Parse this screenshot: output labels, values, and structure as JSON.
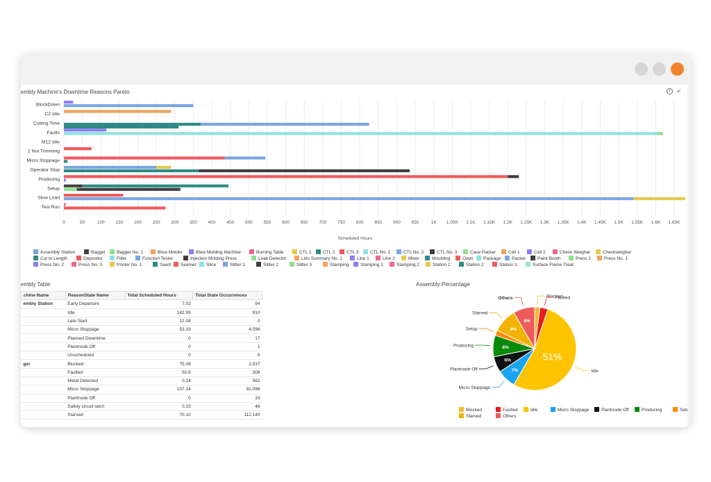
{
  "window": {
    "controls": [
      {
        "name": "minimize",
        "color": "#d6d6d6"
      },
      {
        "name": "maximize",
        "color": "#d6d6d6"
      },
      {
        "name": "close",
        "color": "#f2842e"
      }
    ]
  },
  "pareto": {
    "title": "embly Machine's Downtime Reasons Pareto",
    "info_icon": "info-icon",
    "collapse_icon": "arrow-icon",
    "chart_data": {
      "type": "bar",
      "orientation": "horizontal",
      "title": "embly Machine's Downtime Reasons Pareto",
      "xlabel": "Scheduled Hours",
      "xlim": [
        0,
        1650
      ],
      "x_ticks": [
        "0",
        "50",
        "100",
        "150",
        "200",
        "250",
        "300",
        "350",
        "400",
        "450",
        "500",
        "550",
        "600",
        "650",
        "700",
        "750",
        "800",
        "850",
        "900",
        "950",
        "1K",
        "1.05K",
        "1.1K",
        "1.15K",
        "1.2K",
        "1.25K",
        "1.3K",
        "1.35K",
        "1.4K",
        "1.45K",
        "1.5K",
        "1.55K",
        "1.6K",
        "1.65K"
      ],
      "categories": [
        "BlockDown",
        "C2 Idle",
        "Cutting Time",
        "Faults",
        "M12 Idle",
        "2 Not Trimming",
        "Micro Stoppage",
        "Operator Stop",
        "Producing",
        "Setup",
        "Slow Load",
        "Test Run"
      ],
      "bars": [
        {
          "category": "BlockDown",
          "series": "Cell 2",
          "value": 25
        },
        {
          "category": "BlockDown",
          "series": "CTL No. 2",
          "value": 350
        },
        {
          "category": "C2 Idle",
          "series": "Blow Molder",
          "value": 290
        },
        {
          "category": "Cutting Time",
          "series": "CTL 2",
          "value": 370
        },
        {
          "category": "Cutting Time",
          "series": "CTL No. 2",
          "value": 455
        },
        {
          "category": "Cutting Time",
          "series": "CTL 2",
          "value": 310
        },
        {
          "category": "Faults",
          "series": "Blow Molding Machine",
          "value": 115
        },
        {
          "category": "Faults",
          "series": "CTL No. 1",
          "value": 1605
        },
        {
          "category": "Faults",
          "series": "Bagger No. 1",
          "value": 15
        },
        {
          "category": "2 Not Trimming",
          "series": "CTL 3",
          "value": 75
        },
        {
          "category": "Micro Stoppage",
          "series": "CTL 3",
          "value": 435
        },
        {
          "category": "Micro Stoppage",
          "series": "CTL No. 2",
          "value": 110
        },
        {
          "category": "Micro Stoppage",
          "series": "CTL 2",
          "value": 10
        },
        {
          "category": "Operator Stop",
          "series": "CTL No. 2",
          "value": 250
        },
        {
          "category": "Operator Stop",
          "series": "CTL 1",
          "value": 40
        },
        {
          "category": "Operator Stop",
          "series": "CTL 2",
          "value": 365
        },
        {
          "category": "Operator Stop",
          "series": "CTL No. 3",
          "value": 570
        },
        {
          "category": "Producing",
          "series": "CTL 3",
          "value": 1200
        },
        {
          "category": "Producing",
          "series": "CTL No. 3",
          "value": 30
        },
        {
          "category": "Producing",
          "series": "Cell 2",
          "value": 5
        },
        {
          "category": "Setup",
          "series": "Bagger",
          "value": 35
        },
        {
          "category": "Setup",
          "series": "CTL No. 3",
          "value": 15
        },
        {
          "category": "Setup",
          "series": "CTL 2",
          "value": 395
        },
        {
          "category": "Setup",
          "series": "Bagger No. 1",
          "value": 35
        },
        {
          "category": "Setup",
          "series": "Bagger",
          "value": 5
        },
        {
          "category": "Setup",
          "series": "CTL No. 3",
          "value": 275
        },
        {
          "category": "Slow Load",
          "series": "CTL 3",
          "value": 160
        },
        {
          "category": "Slow Load",
          "series": "CTL No. 2",
          "value": 1540
        },
        {
          "category": "Slow Load",
          "series": "CTL 1",
          "value": 140
        },
        {
          "category": "Test Run",
          "series": "Burning Table",
          "value": 5
        },
        {
          "category": "Test Run",
          "series": "CTL 3",
          "value": 275
        }
      ]
    },
    "legend": [
      {
        "label": "Assembly Station",
        "color": "#7aa6e0"
      },
      {
        "label": "Bagger",
        "color": "#444444"
      },
      {
        "label": "Bagger No. 1",
        "color": "#8ee08a"
      },
      {
        "label": "Blow Molder",
        "color": "#f2a35e"
      },
      {
        "label": "Blow Molding Machine",
        "color": "#8a7ef0"
      },
      {
        "label": "Burning Table",
        "color": "#f06792"
      },
      {
        "label": "CTL 1",
        "color": "#e6c84e"
      },
      {
        "label": "CTL 2",
        "color": "#2e8b84"
      },
      {
        "label": "CTL 3",
        "color": "#ef5a5e"
      },
      {
        "label": "CTL No. 1",
        "color": "#8fe3e0"
      },
      {
        "label": "CTL No. 2",
        "color": "#7aa6e0"
      },
      {
        "label": "CTL No. 3",
        "color": "#3d3d3d"
      },
      {
        "label": "Case Packer",
        "color": "#8ee08a"
      },
      {
        "label": "Cell 1",
        "color": "#f2a35e"
      },
      {
        "label": "Cell 2",
        "color": "#8a7ef0"
      },
      {
        "label": "Check Weigher",
        "color": "#f06792"
      },
      {
        "label": "Checkweigher",
        "color": "#e6c84e"
      },
      {
        "label": "Cut to Length",
        "color": "#2e8b84"
      },
      {
        "label": "Depositor",
        "color": "#ef5a5e"
      },
      {
        "label": "Filler",
        "color": "#8fe3e0"
      },
      {
        "label": "Function Tester",
        "color": "#7aa6e0"
      },
      {
        "label": "Injection Molding Press",
        "color": "#3d3d3d"
      },
      {
        "label": "Leak Detector",
        "color": "#8ee08a"
      },
      {
        "label": "Lids Summary No. 1",
        "color": "#f2a35e"
      },
      {
        "label": "Line 1",
        "color": "#8a7ef0"
      },
      {
        "label": "Line 2",
        "color": "#f06792"
      },
      {
        "label": "Mixer",
        "color": "#e6c84e"
      },
      {
        "label": "Moulding",
        "color": "#2e8b84"
      },
      {
        "label": "Oven",
        "color": "#ef5a5e"
      },
      {
        "label": "Package",
        "color": "#8fe3e0"
      },
      {
        "label": "Packer",
        "color": "#7aa6e0"
      },
      {
        "label": "Paint Booth",
        "color": "#3d3d3d"
      },
      {
        "label": "Press 2",
        "color": "#8ee08a"
      },
      {
        "label": "Press No. 1",
        "color": "#f2a35e"
      },
      {
        "label": "Press No. 2",
        "color": "#8a7ef0"
      },
      {
        "label": "Press No. 3",
        "color": "#f06792"
      },
      {
        "label": "Printer No. 1",
        "color": "#e6c84e"
      },
      {
        "label": "Saw3",
        "color": "#2e8b84"
      },
      {
        "label": "Seamer",
        "color": "#ef5a5e"
      },
      {
        "label": "Slice",
        "color": "#8fe3e0"
      },
      {
        "label": "Slitter 1",
        "color": "#7aa6e0"
      },
      {
        "label": "Slitter 2",
        "color": "#3d3d3d"
      },
      {
        "label": "Slitter 3",
        "color": "#8ee08a"
      },
      {
        "label": "Stamping",
        "color": "#f2a35e"
      },
      {
        "label": "Stamping 1",
        "color": "#8a7ef0"
      },
      {
        "label": "Stamping 2",
        "color": "#f06792"
      },
      {
        "label": "Station 1",
        "color": "#e6c84e"
      },
      {
        "label": "Station 2",
        "color": "#2e8b84"
      },
      {
        "label": "Station 3",
        "color": "#ef5a5e"
      },
      {
        "label": "Surface Flame Treat",
        "color": "#8fe3e0"
      }
    ]
  },
  "table": {
    "title": "embly Table",
    "headers": [
      "chine Name",
      "ReasonState Name",
      "Total Scheduled Hours",
      "Total State Occurrences"
    ],
    "rows": [
      {
        "machine": "embly Station",
        "reason": "Early Departure",
        "hours": "7.02",
        "occ": "94"
      },
      {
        "machine": "",
        "reason": "Idle",
        "hours": "142.99",
        "occ": "910"
      },
      {
        "machine": "",
        "reason": "Late Start",
        "hours": "12.08",
        "occ": "0"
      },
      {
        "machine": "",
        "reason": "Micro Stoppage",
        "hours": "53.33",
        "occ": "4,596"
      },
      {
        "machine": "",
        "reason": "Planned Downtime",
        "hours": "0",
        "occ": "17"
      },
      {
        "machine": "",
        "reason": "Plantnode Off",
        "hours": "0",
        "occ": "1"
      },
      {
        "machine": "",
        "reason": "Unscheduled",
        "hours": "0",
        "occ": "6"
      },
      {
        "machine": "ger",
        "reason": "Blocked",
        "hours": "75.08",
        "occ": "2,537"
      },
      {
        "machine": "",
        "reason": "Faulted",
        "hours": "92.8",
        "occ": "308"
      },
      {
        "machine": "",
        "reason": "Metal Detected",
        "hours": "0.14",
        "occ": "562"
      },
      {
        "machine": "",
        "reason": "Micro Stoppage",
        "hours": "107.14",
        "occ": "92,096"
      },
      {
        "machine": "",
        "reason": "Plantnode Off",
        "hours": "0",
        "occ": "33"
      },
      {
        "machine": "",
        "reason": "Safety circuit latch",
        "hours": "0.33",
        "occ": "48"
      },
      {
        "machine": "",
        "reason": "Starved",
        "hours": "70.10",
        "occ": "112,140"
      }
    ]
  },
  "pie": {
    "title": "Assembly Percentage",
    "chart_data": {
      "type": "pie",
      "title": "Assembly Percentage",
      "slices": [
        {
          "label": "Blocked",
          "value": 2,
          "color": "#f7b731"
        },
        {
          "label": "Faulted",
          "value": 3,
          "color": "#e81c1c"
        },
        {
          "label": "Idle",
          "value": 51,
          "color": "#ffc400"
        },
        {
          "label": "Micro Stoppage",
          "value": 7,
          "color": "#1aa3f0"
        },
        {
          "label": "Plantnode Off",
          "value": 6,
          "color": "#111111"
        },
        {
          "label": "Producing",
          "value": 8,
          "color": "#0a8a0a"
        },
        {
          "label": "Setup",
          "value": 2,
          "color": "#ff8c00"
        },
        {
          "label": "Starved",
          "value": 9,
          "color": "#f2b400"
        },
        {
          "label": "Others",
          "value": 8,
          "color": "#ee5b5b"
        }
      ]
    },
    "inner_labels": [
      {
        "text": "51%",
        "slice": "Idle"
      },
      {
        "text": "7%",
        "slice": "Micro Stoppage"
      },
      {
        "text": "6%",
        "slice": "Plantnode Off"
      },
      {
        "text": "8%",
        "slice": "Producing"
      },
      {
        "text": "9%",
        "slice": "Starved"
      },
      {
        "text": "8%",
        "slice": "Others"
      }
    ],
    "legend": [
      {
        "label": "Blocked",
        "color": "#f7b731"
      },
      {
        "label": "Faulted",
        "color": "#e81c1c"
      },
      {
        "label": "Idle",
        "color": "#ffc400"
      },
      {
        "label": "Micro Stoppage",
        "color": "#1aa3f0"
      },
      {
        "label": "Plantnode Off",
        "color": "#111111"
      },
      {
        "label": "Producing",
        "color": "#0a8a0a"
      },
      {
        "label": "Setup",
        "color": "#ff8c00"
      },
      {
        "label": "Starved",
        "color": "#f2b400"
      },
      {
        "label": "Others",
        "color": "#ee5b5b"
      }
    ]
  }
}
